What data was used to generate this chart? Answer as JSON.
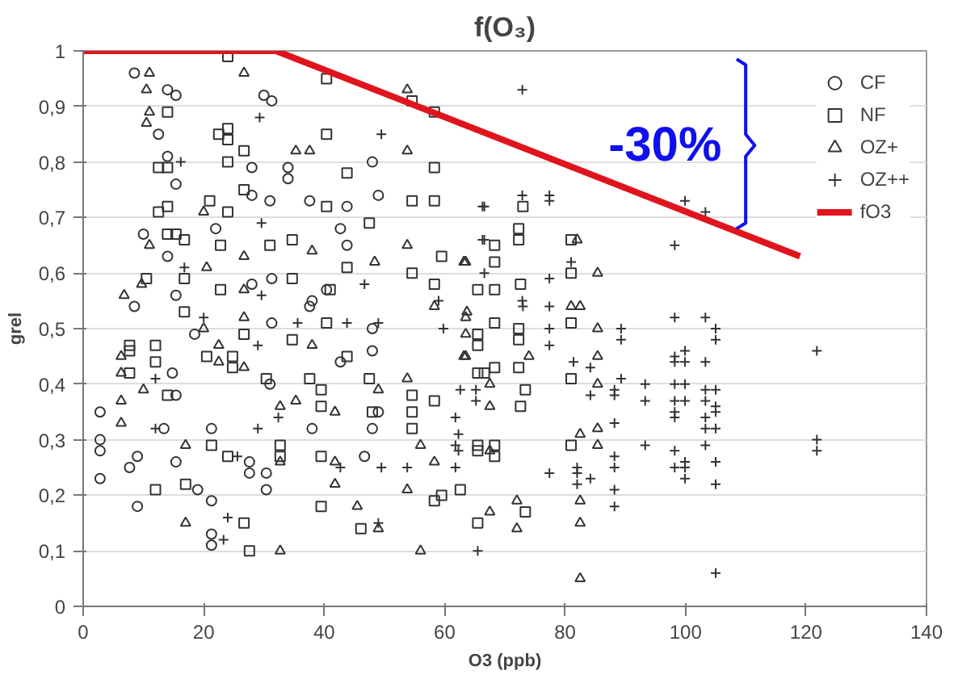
{
  "chart_data": {
    "type": "scatter",
    "title": "f(O₃)",
    "xlabel": "O3 (ppb)",
    "ylabel": "grel",
    "xlim": [
      0,
      140
    ],
    "xticks": [
      0,
      20,
      40,
      60,
      80,
      100,
      120,
      140
    ],
    "ylim": [
      0,
      1
    ],
    "yticks": [
      0,
      {
        "value": 0.1,
        "label": "0,1"
      },
      {
        "value": 0.2,
        "label": "0,2"
      },
      {
        "value": 0.3,
        "label": "0,3"
      },
      {
        "value": 0.4,
        "label": "0,4"
      },
      {
        "value": 0.5,
        "label": "0,5"
      },
      {
        "value": 0.6,
        "label": "0,6"
      },
      {
        "value": 0.7,
        "label": "0,7"
      },
      {
        "value": 0.8,
        "label": "0,8"
      },
      {
        "value": 0.9,
        "label": "0,9"
      },
      1
    ],
    "grid": "y",
    "legend": "top right",
    "annotations": [
      "-30%"
    ],
    "series": [
      {
        "name": "CF",
        "marker": "circle",
        "color": "#333333",
        "x": [
          8.5,
          14,
          15.4,
          30,
          31.3,
          12.5,
          14,
          28,
          34,
          34,
          15.4,
          48,
          49,
          28,
          31,
          37.6,
          43.8,
          42.7,
          10,
          14,
          22,
          43.8,
          28,
          31.3,
          40.4,
          8.5,
          15.4,
          37.6,
          2.8,
          2.8,
          2.8,
          2.8,
          9,
          9,
          7.7,
          14.8,
          13.4,
          15.4,
          19,
          21.3,
          21.3,
          21.3,
          27.6,
          27.6,
          30.4,
          30.4,
          31.3,
          38,
          42.7,
          46.7,
          48,
          48,
          49,
          38,
          21.3,
          15.4,
          48,
          18.5,
          31
        ],
        "values": [
          0.96,
          0.93,
          0.92,
          0.92,
          0.91,
          0.85,
          0.81,
          0.79,
          0.79,
          0.77,
          0.76,
          0.8,
          0.74,
          0.74,
          0.73,
          0.73,
          0.72,
          0.68,
          0.67,
          0.63,
          0.68,
          0.65,
          0.58,
          0.59,
          0.57,
          0.54,
          0.56,
          0.54,
          0.35,
          0.3,
          0.23,
          0.28,
          0.18,
          0.27,
          0.25,
          0.42,
          0.32,
          0.26,
          0.21,
          0.19,
          0.11,
          0.13,
          0.26,
          0.24,
          0.24,
          0.21,
          0.51,
          0.32,
          0.44,
          0.27,
          0.46,
          0.32,
          0.35,
          0.55,
          0.32,
          0.38,
          0.5,
          0.49,
          0.4
        ]
      },
      {
        "name": "NF",
        "marker": "square",
        "color": "#333333",
        "x": [
          24,
          40.4,
          54.6,
          58.3,
          14,
          24,
          24,
          22.5,
          40.4,
          26.7,
          24,
          12.5,
          14,
          43.8,
          58.3,
          26.7,
          58.3,
          54.6,
          14,
          21,
          24,
          40.4,
          47.5,
          12.5,
          14,
          15.4,
          16.8,
          34.7,
          31,
          22.8,
          43.8,
          59.5,
          68.3,
          68.3,
          54.6,
          34.7,
          41,
          58.3,
          65.5,
          68.3,
          16.8,
          10.5,
          22.8,
          73,
          72.3,
          72.3,
          81,
          81,
          72.6,
          68.3,
          65.5,
          65.5,
          72.3,
          72.3,
          72.3,
          73.4,
          72.6,
          65.5,
          68.3,
          81,
          81,
          81,
          65.5,
          68.3,
          65.5,
          68.3,
          59.5,
          65.5,
          73.4,
          7.7,
          7.7,
          12,
          12,
          7.7,
          14,
          16.8,
          24.8,
          24.8,
          26.7,
          30.4,
          32.7,
          32.7,
          34.7,
          37.6,
          39.5,
          39.5,
          39.5,
          39.5,
          40.4,
          43.8,
          46.1,
          47.5,
          48,
          54.6,
          54.6,
          54.6,
          58.3,
          58.3,
          27.6,
          26.7,
          17,
          12,
          21.3,
          24,
          20.5,
          66.6,
          62.6
        ],
        "values": [
          0.99,
          0.95,
          0.91,
          0.89,
          0.89,
          0.86,
          0.84,
          0.85,
          0.85,
          0.82,
          0.8,
          0.79,
          0.79,
          0.78,
          0.79,
          0.75,
          0.73,
          0.73,
          0.72,
          0.73,
          0.71,
          0.72,
          0.69,
          0.71,
          0.67,
          0.67,
          0.66,
          0.66,
          0.65,
          0.65,
          0.61,
          0.63,
          0.65,
          0.62,
          0.6,
          0.59,
          0.57,
          0.58,
          0.57,
          0.57,
          0.59,
          0.59,
          0.57,
          0.72,
          0.68,
          0.66,
          0.66,
          0.6,
          0.58,
          0.51,
          0.49,
          0.47,
          0.5,
          0.48,
          0.43,
          0.39,
          0.36,
          0.42,
          0.43,
          0.41,
          0.51,
          0.29,
          0.28,
          0.27,
          0.29,
          0.29,
          0.2,
          0.15,
          0.17,
          0.47,
          0.46,
          0.47,
          0.44,
          0.42,
          0.38,
          0.53,
          0.45,
          0.43,
          0.49,
          0.41,
          0.29,
          0.27,
          0.48,
          0.41,
          0.39,
          0.36,
          0.27,
          0.18,
          0.51,
          0.45,
          0.14,
          0.41,
          0.35,
          0.38,
          0.35,
          0.32,
          0.37,
          0.19,
          0.1,
          0.15,
          0.22,
          0.21,
          0.29,
          0.27,
          0.45,
          0.42,
          0.21
        ]
      },
      {
        "name": "OZ+",
        "marker": "triangle",
        "color": "#333333",
        "x": [
          11,
          10.5,
          11,
          10.5,
          26.7,
          53.8,
          35.3,
          37.6,
          53.8,
          20,
          11,
          38,
          53.8,
          26.7,
          63.2,
          48.4,
          9.7,
          6.8,
          20.5,
          63.7,
          58.3,
          26.7,
          82,
          85.4,
          63.5,
          63.5,
          63.5,
          63.5,
          67.5,
          67.5,
          67.5,
          74,
          85.4,
          85.4,
          85.4,
          82.5,
          85.4,
          85.4,
          82.5,
          82.5,
          82.5,
          72,
          72,
          67.5,
          81,
          82.5,
          6.3,
          6.3,
          6.3,
          6.3,
          10,
          17,
          17,
          20,
          22.5,
          22.5,
          26.7,
          26.7,
          32.7,
          32.7,
          32.7,
          35.3,
          38,
          41.8,
          41.8,
          41.8,
          45.5,
          49,
          49,
          53.8,
          53.8,
          56,
          56,
          58.3,
          63.2
        ],
        "values": [
          0.96,
          0.93,
          0.89,
          0.87,
          0.96,
          0.93,
          0.82,
          0.82,
          0.82,
          0.71,
          0.65,
          0.64,
          0.65,
          0.63,
          0.62,
          0.62,
          0.58,
          0.56,
          0.61,
          0.53,
          0.54,
          0.57,
          0.66,
          0.6,
          0.62,
          0.52,
          0.49,
          0.45,
          0.4,
          0.36,
          0.28,
          0.45,
          0.5,
          0.45,
          0.4,
          0.31,
          0.32,
          0.29,
          0.19,
          0.15,
          0.05,
          0.19,
          0.14,
          0.17,
          0.54,
          0.54,
          0.45,
          0.42,
          0.37,
          0.33,
          0.39,
          0.15,
          0.29,
          0.5,
          0.47,
          0.44,
          0.52,
          0.43,
          0.1,
          0.26,
          0.36,
          0.37,
          0.47,
          0.35,
          0.26,
          0.22,
          0.18,
          0.39,
          0.14,
          0.41,
          0.21,
          0.29,
          0.1,
          0.26,
          0.45
        ]
      },
      {
        "name": "OZ++",
        "marker": "cross",
        "color": "#333333",
        "x": [
          29.3,
          16.2,
          49.5,
          66.6,
          29.6,
          66.6,
          66.6,
          46.7,
          59,
          29.6,
          16.8,
          72.9,
          72.9,
          77.4,
          77.4,
          66.3,
          99.9,
          103.3,
          98.2,
          66.3,
          81,
          77.4,
          72.9,
          73,
          77.4,
          89.3,
          89.3,
          77.4,
          77.4,
          98.2,
          103.3,
          105,
          105,
          98.2,
          98.2,
          99.9,
          99.9,
          103.3,
          121.8,
          121.8,
          121.8,
          89.3,
          88.2,
          88.2,
          93.3,
          98.2,
          99.9,
          103.3,
          105,
          93.3,
          98.2,
          99.9,
          103.3,
          105,
          98.2,
          98.2,
          103.3,
          105,
          103.3,
          105,
          88.2,
          93.3,
          98.2,
          103.3,
          99.9,
          99.9,
          98.2,
          99.9,
          105,
          105,
          88.2,
          88.2,
          88.2,
          88.2,
          82,
          82,
          82,
          84.2,
          77.4,
          105,
          65.5,
          84.2,
          84.2,
          81.4,
          61.8,
          61.8,
          62.6,
          65.2,
          65.2,
          61.8,
          12,
          12,
          20,
          23.3,
          24,
          29,
          29,
          35.6,
          43.8,
          49,
          49,
          42.7,
          49.5,
          53.8,
          59.8,
          62.3,
          62.3,
          25.6,
          32.4
        ],
        "values": [
          0.88,
          0.8,
          0.85,
          0.72,
          0.69,
          0.66,
          0.6,
          0.58,
          0.55,
          0.56,
          0.61,
          0.93,
          0.74,
          0.74,
          0.73,
          0.72,
          0.73,
          0.71,
          0.65,
          0.66,
          0.62,
          0.59,
          0.55,
          0.54,
          0.54,
          0.5,
          0.48,
          0.5,
          0.47,
          0.52,
          0.52,
          0.5,
          0.48,
          0.45,
          0.44,
          0.46,
          0.44,
          0.44,
          0.46,
          0.3,
          0.28,
          0.41,
          0.39,
          0.38,
          0.4,
          0.4,
          0.4,
          0.39,
          0.39,
          0.37,
          0.37,
          0.37,
          0.37,
          0.36,
          0.35,
          0.34,
          0.34,
          0.35,
          0.32,
          0.32,
          0.33,
          0.29,
          0.28,
          0.29,
          0.26,
          0.25,
          0.25,
          0.23,
          0.26,
          0.22,
          0.27,
          0.25,
          0.21,
          0.18,
          0.25,
          0.24,
          0.22,
          0.23,
          0.24,
          0.06,
          0.1,
          0.38,
          0.43,
          0.44,
          0.29,
          0.25,
          0.39,
          0.39,
          0.37,
          0.34,
          0.41,
          0.32,
          0.52,
          0.12,
          0.16,
          0.47,
          0.32,
          0.51,
          0.51,
          0.15,
          0.51,
          0.25,
          0.25,
          0.25,
          0.5,
          0.31,
          0.28,
          0.27,
          0.34
        ]
      },
      {
        "name": "fO3",
        "type": "line",
        "marker": "none",
        "color": "#e0141c",
        "x": [
          0,
          32,
          119
        ],
        "values": [
          1,
          1,
          0.63
        ]
      }
    ]
  }
}
